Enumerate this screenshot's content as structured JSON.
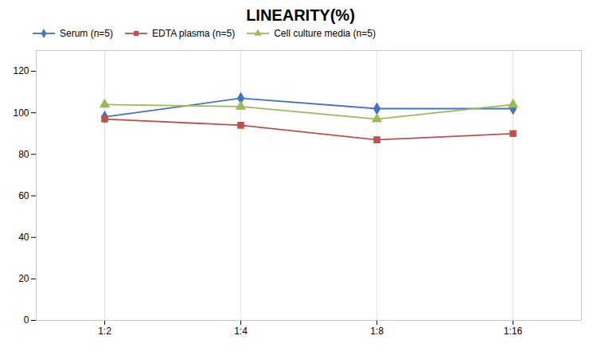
{
  "chart_data": {
    "type": "line",
    "title": "LINEARITY(%)",
    "categories": [
      "1:2",
      "1:4",
      "1:8",
      "1:16"
    ],
    "series": [
      {
        "name": "Serum (n=5)",
        "color": "#4472C4",
        "marker": "diamond",
        "values": [
          98,
          107,
          102,
          102
        ]
      },
      {
        "name": "EDTA plasma (n=5)",
        "color": "#C0504D",
        "marker": "square",
        "values": [
          97,
          94,
          87,
          90
        ]
      },
      {
        "name": "Cell culture media (n=5)",
        "color": "#9BBB59",
        "marker": "triangle",
        "values": [
          104,
          103,
          97,
          104
        ]
      }
    ],
    "ylim": [
      0,
      130
    ],
    "yticks": [
      0,
      20,
      40,
      60,
      80,
      100,
      120
    ],
    "grid": true,
    "legend": "top"
  }
}
